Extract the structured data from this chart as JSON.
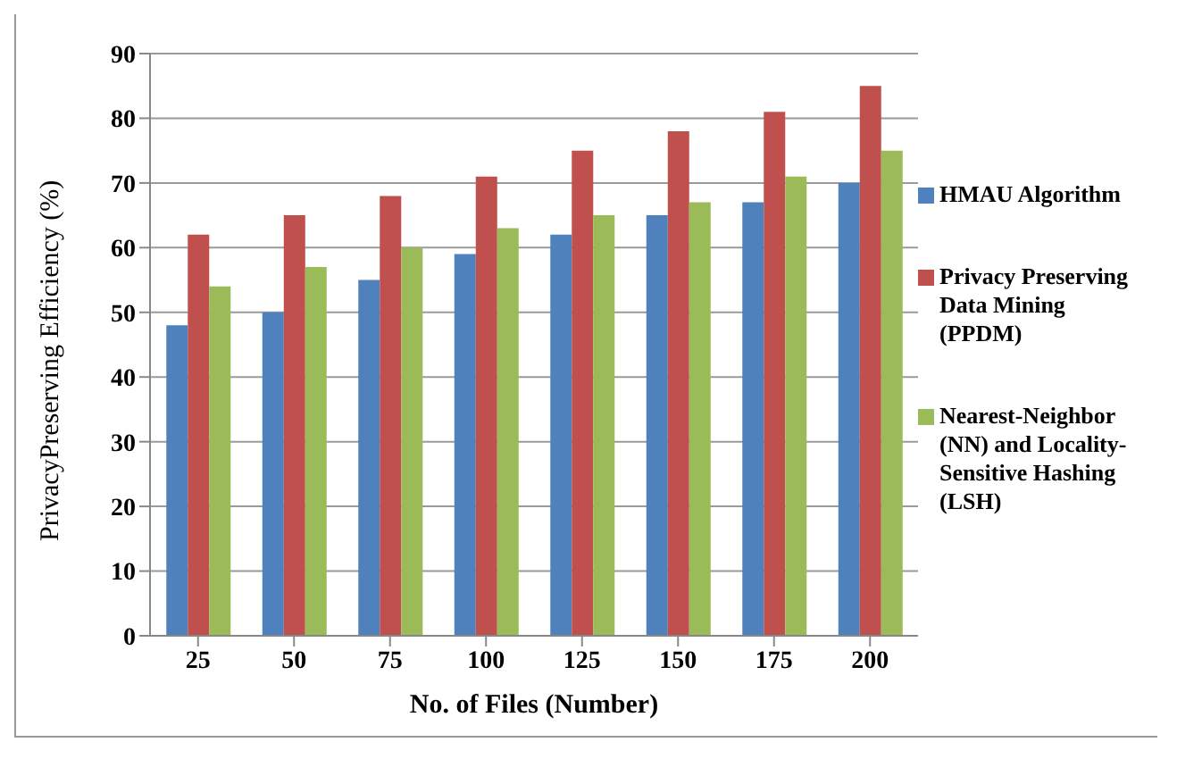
{
  "chart_data": {
    "type": "bar",
    "xlabel": "No. of Files (Number)",
    "ylabel": "PrivacyPreserving Efficiency (%)",
    "categories": [
      "25",
      "50",
      "75",
      "100",
      "125",
      "150",
      "175",
      "200"
    ],
    "series": [
      {
        "name": "HMAU Algorithm",
        "color": "#4f81bd",
        "values": [
          48,
          50,
          55,
          59,
          62,
          65,
          67,
          70
        ]
      },
      {
        "name": "Privacy Preserving Data Mining (PPDM)",
        "color": "#c0504d",
        "values": [
          62,
          65,
          68,
          71,
          75,
          78,
          81,
          85
        ]
      },
      {
        "name": "Nearest-Neighbor (NN) and Locality-Sensitive Hashing (LSH)",
        "color": "#9bbb59",
        "values": [
          54,
          57,
          60,
          63,
          65,
          67,
          71,
          75
        ]
      }
    ],
    "ylim": [
      0,
      90
    ],
    "yticks": [
      0,
      10,
      20,
      30,
      40,
      50,
      60,
      70,
      80,
      90
    ],
    "grid": "y",
    "legend": "right"
  }
}
